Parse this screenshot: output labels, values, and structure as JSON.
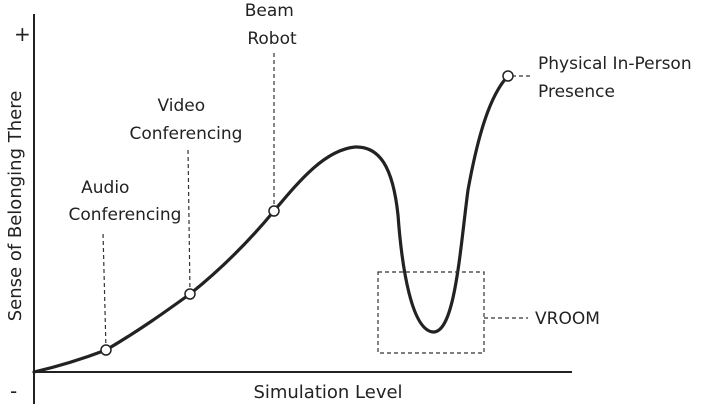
{
  "axes": {
    "y_label": "Sense of Belonging There",
    "x_label": "Simulation Level",
    "y_top_symbol": "+",
    "y_bottom_symbol": "-"
  },
  "annotations": [
    {
      "id": "audio",
      "lines": [
        "Audio",
        "Conferencing"
      ]
    },
    {
      "id": "video",
      "lines": [
        "Video",
        "Conferencing"
      ]
    },
    {
      "id": "beam",
      "lines": [
        "Beam",
        "Robot"
      ]
    },
    {
      "id": "physical",
      "lines": [
        "Physical In-Person",
        "Presence"
      ]
    },
    {
      "id": "vroom",
      "lines": [
        "VROOM"
      ]
    }
  ],
  "colors": {
    "stroke": "#222222",
    "background": "#ffffff"
  }
}
